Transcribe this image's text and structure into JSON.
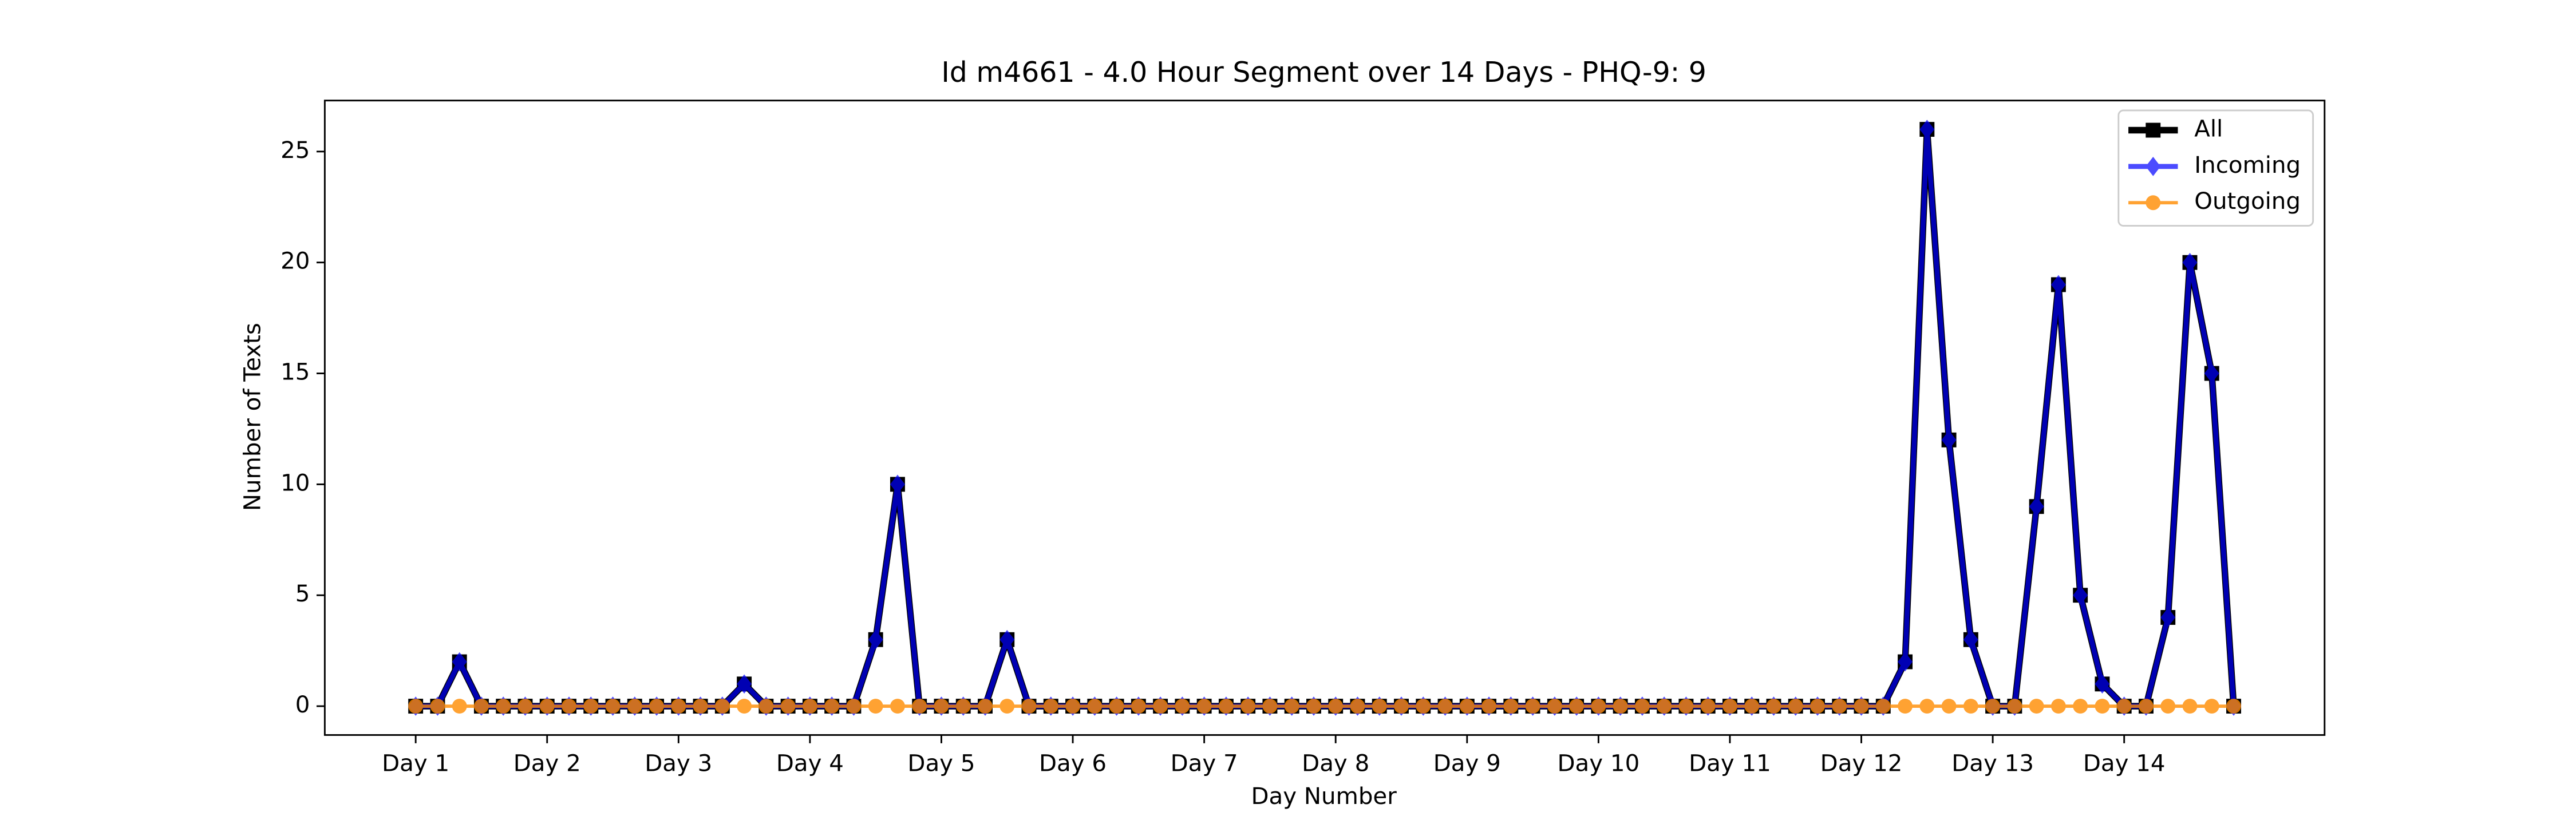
{
  "chart_data": {
    "type": "line",
    "title": "Id m4661 - 4.0 Hour Segment over 14 Days - PHQ-9: 9",
    "xlabel": "Day Number",
    "ylabel": "Number of Texts",
    "x": [
      0,
      1,
      2,
      3,
      4,
      5,
      6,
      7,
      8,
      9,
      10,
      11,
      12,
      13,
      14,
      15,
      16,
      17,
      18,
      19,
      20,
      21,
      22,
      23,
      24,
      25,
      26,
      27,
      28,
      29,
      30,
      31,
      32,
      33,
      34,
      35,
      36,
      37,
      38,
      39,
      40,
      41,
      42,
      43,
      44,
      45,
      46,
      47,
      48,
      49,
      50,
      51,
      52,
      53,
      54,
      55,
      56,
      57,
      58,
      59,
      60,
      61,
      62,
      63,
      64,
      65,
      66,
      67,
      68,
      69,
      70,
      71,
      72,
      73,
      74,
      75,
      76,
      77,
      78,
      79,
      80,
      81,
      82,
      83
    ],
    "series": [
      {
        "name": "All",
        "color": "#000000",
        "marker": "square",
        "alpha": 1,
        "width": 4,
        "values": [
          0,
          0,
          2,
          0,
          0,
          0,
          0,
          0,
          0,
          0,
          0,
          0,
          0,
          0,
          0,
          1,
          0,
          0,
          0,
          0,
          0,
          3,
          10,
          0,
          0,
          0,
          0,
          3,
          0,
          0,
          0,
          0,
          0,
          0,
          0,
          0,
          0,
          0,
          0,
          0,
          0,
          0,
          0,
          0,
          0,
          0,
          0,
          0,
          0,
          0,
          0,
          0,
          0,
          0,
          0,
          0,
          0,
          0,
          0,
          0,
          0,
          0,
          0,
          0,
          0,
          0,
          0,
          0,
          2,
          26,
          12,
          3,
          0,
          0,
          9,
          19,
          5,
          1,
          0,
          0,
          4,
          20,
          15,
          0
        ]
      },
      {
        "name": "Incoming",
        "color": "#0000ff",
        "marker": "diamond",
        "alpha": 0.7,
        "width": 3,
        "values": [
          0,
          0,
          2,
          0,
          0,
          0,
          0,
          0,
          0,
          0,
          0,
          0,
          0,
          0,
          0,
          1,
          0,
          0,
          0,
          0,
          0,
          3,
          10,
          0,
          0,
          0,
          0,
          3,
          0,
          0,
          0,
          0,
          0,
          0,
          0,
          0,
          0,
          0,
          0,
          0,
          0,
          0,
          0,
          0,
          0,
          0,
          0,
          0,
          0,
          0,
          0,
          0,
          0,
          0,
          0,
          0,
          0,
          0,
          0,
          0,
          0,
          0,
          0,
          0,
          0,
          0,
          0,
          0,
          2,
          26,
          12,
          3,
          0,
          0,
          9,
          19,
          5,
          1,
          0,
          0,
          4,
          20,
          15,
          0
        ]
      },
      {
        "name": "Outgoing",
        "color": "#ff8c00",
        "marker": "circle",
        "alpha": 0.8,
        "width": 2,
        "values": [
          0,
          0,
          0,
          0,
          0,
          0,
          0,
          0,
          0,
          0,
          0,
          0,
          0,
          0,
          0,
          0,
          0,
          0,
          0,
          0,
          0,
          0,
          0,
          0,
          0,
          0,
          0,
          0,
          0,
          0,
          0,
          0,
          0,
          0,
          0,
          0,
          0,
          0,
          0,
          0,
          0,
          0,
          0,
          0,
          0,
          0,
          0,
          0,
          0,
          0,
          0,
          0,
          0,
          0,
          0,
          0,
          0,
          0,
          0,
          0,
          0,
          0,
          0,
          0,
          0,
          0,
          0,
          0,
          0,
          0,
          0,
          0,
          0,
          0,
          0,
          0,
          0,
          0,
          0,
          0,
          0,
          0,
          0,
          0
        ]
      }
    ],
    "xlim": [
      -4.15,
      87.15
    ],
    "xticks": [
      {
        "value": 0,
        "label": "Day 1"
      },
      {
        "value": 6,
        "label": "Day 2"
      },
      {
        "value": 12,
        "label": "Day 3"
      },
      {
        "value": 18,
        "label": "Day 4"
      },
      {
        "value": 24,
        "label": "Day 5"
      },
      {
        "value": 30,
        "label": "Day 6"
      },
      {
        "value": 36,
        "label": "Day 7"
      },
      {
        "value": 42,
        "label": "Day 8"
      },
      {
        "value": 48,
        "label": "Day 9"
      },
      {
        "value": 54,
        "label": "Day 10"
      },
      {
        "value": 60,
        "label": "Day 11"
      },
      {
        "value": 66,
        "label": "Day 12"
      },
      {
        "value": 72,
        "label": "Day 13"
      },
      {
        "value": 78,
        "label": "Day 14"
      }
    ],
    "ylim": [
      -1.3,
      27.3
    ],
    "yticks": [
      0,
      5,
      10,
      15,
      20,
      25
    ],
    "grid": false,
    "legend": "upper right"
  }
}
